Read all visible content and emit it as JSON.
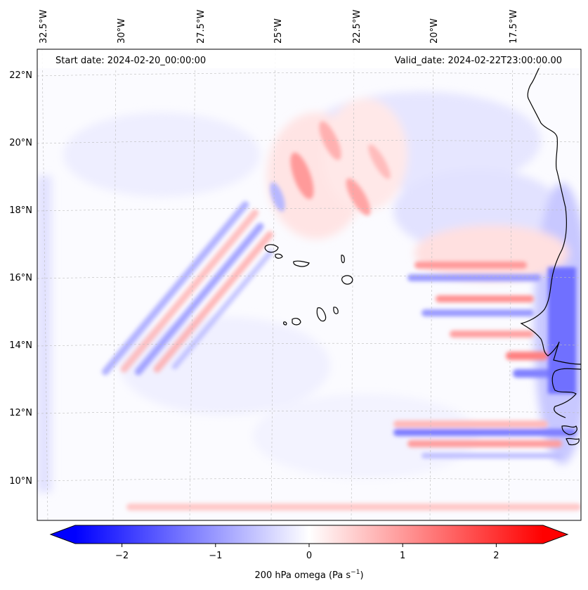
{
  "map": {
    "start_date": "Start date: 2024-02-20_00:00:00",
    "valid_date": "Valid_date: 2024-02-22T23:00:00.00",
    "lon_labels": [
      "32.5°W",
      "30°W",
      "27.5°W",
      "25°W",
      "22.5°W",
      "20°W",
      "17.5°W"
    ],
    "lat_labels": [
      "22°N",
      "20°N",
      "18°N",
      "16°N",
      "14°N",
      "12°N",
      "10°N"
    ],
    "field": "200 hPa omega",
    "colors": {
      "negative": "#0000ff",
      "neutral": "#ffffff",
      "positive": "#ff0000",
      "coastline": "#000000"
    }
  },
  "colorbar": {
    "label": "200 hPa omega (Pa s",
    "unit_exponent": "−1",
    "label_close": ")",
    "ticks": [
      {
        "value": -2,
        "label": "−2"
      },
      {
        "value": -1,
        "label": "−1"
      },
      {
        "value": 0,
        "label": "0"
      },
      {
        "value": 1,
        "label": "1"
      },
      {
        "value": 2,
        "label": "2"
      }
    ],
    "range": [
      -2.5,
      2.5
    ],
    "extend": "both"
  }
}
